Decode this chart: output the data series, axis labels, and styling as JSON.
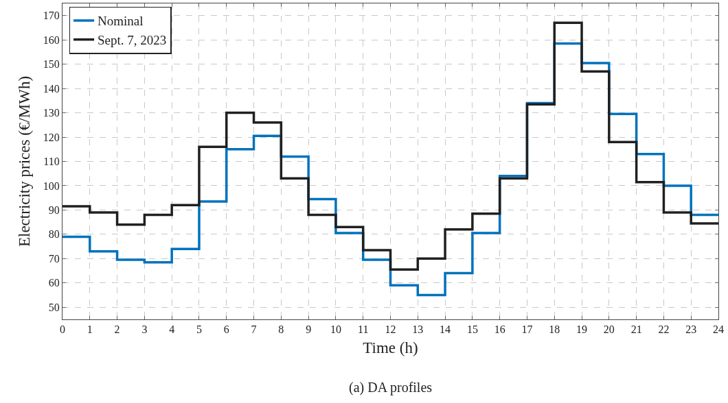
{
  "chart_data": {
    "type": "step",
    "xlabel": "Time (h)",
    "ylabel": "Electricity prices (€/MWh)",
    "annotations": [
      "(a) DA profiles"
    ],
    "x": [
      0,
      1,
      2,
      3,
      4,
      5,
      6,
      7,
      8,
      9,
      10,
      11,
      12,
      13,
      14,
      15,
      16,
      17,
      18,
      19,
      20,
      21,
      22,
      23,
      24
    ],
    "series": [
      {
        "name": "Nominal",
        "color": "#0072bd",
        "values": [
          79,
          73,
          69.5,
          68.5,
          74,
          93.5,
          115,
          120.5,
          112,
          94.5,
          80.5,
          69.5,
          59,
          55,
          64,
          80.5,
          104,
          134,
          158.5,
          150.5,
          129.5,
          113,
          100,
          88,
          88
        ]
      },
      {
        "name": "Sept. 7, 2023",
        "color": "#202020",
        "values": [
          91.5,
          89,
          84,
          88,
          92,
          116,
          130,
          126,
          103,
          88,
          83,
          73.5,
          65.5,
          70,
          82,
          88.5,
          103,
          133.5,
          167,
          147,
          118,
          101.5,
          89,
          84.5,
          84.5
        ]
      }
    ],
    "xlim": [
      0,
      24
    ],
    "xticks": [
      0,
      1,
      2,
      3,
      4,
      5,
      6,
      7,
      8,
      9,
      10,
      11,
      12,
      13,
      14,
      15,
      16,
      17,
      18,
      19,
      20,
      21,
      22,
      23,
      24
    ],
    "ylim": [
      45,
      175
    ],
    "yticks": [
      50,
      60,
      70,
      80,
      90,
      100,
      110,
      120,
      130,
      140,
      150,
      160,
      170
    ],
    "grid": true,
    "legend": "top left",
    "line_style": "solid",
    "marker": "none"
  }
}
